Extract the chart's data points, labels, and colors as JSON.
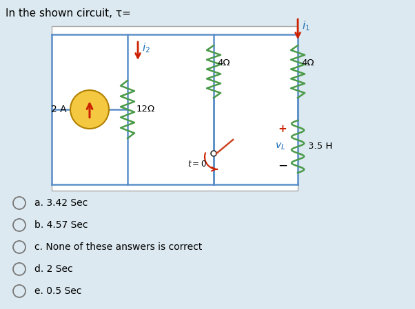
{
  "title": "In the shown circuit, τ=",
  "bg_color": "#dce9f0",
  "circuit_bg": "#ffffff",
  "options": [
    "a. 3.42 Sec",
    "b. 4.57 Sec",
    "c. None of these answers is correct",
    "d. 2 Sec",
    "e. 0.5 Sec"
  ],
  "cs_value": "2 A",
  "r1_value": "12Ω",
  "r2_value": "4Ω",
  "r3_value": "4Ω",
  "ind_value": "3.5 H",
  "switch_label": "t = 0",
  "i2_label": "i_2",
  "i1_label": "i_1",
  "vl_plus": "+",
  "vl_minus": "−",
  "vl_label": "v_L",
  "wire_color": "#5b8fc9",
  "resistor_color": "#4a9a4a",
  "inductor_color": "#4a9a4a",
  "switch_color": "#cc4422",
  "arrow_color": "#cc2200",
  "cs_fill": "#f5c842",
  "cs_edge": "#b08000",
  "text_color": "#000000",
  "cyan_color": "#1a6eb5"
}
